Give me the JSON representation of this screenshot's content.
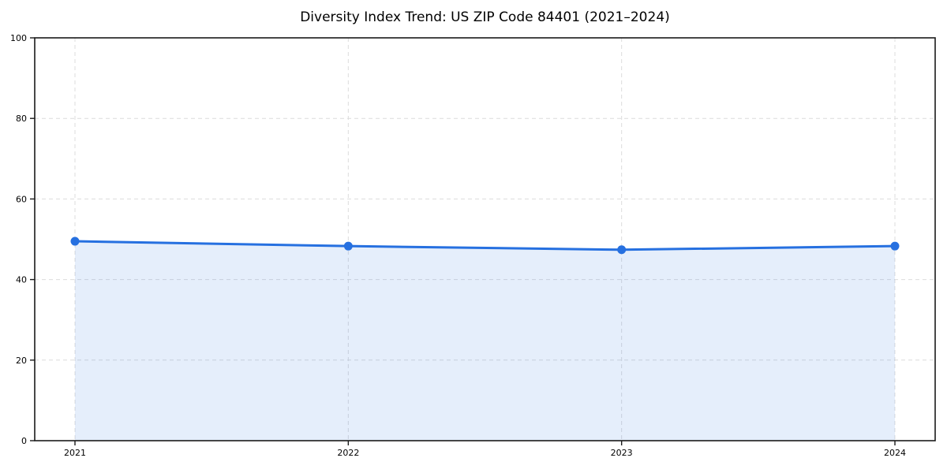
{
  "figure": {
    "title": "Diversity Index Trend: US ZIP Code 84401 (2021–2024)"
  },
  "chart_data": {
    "type": "area",
    "title": "Diversity Index Trend: US ZIP Code 84401 (2021–2024)",
    "xlabel": "",
    "ylabel": "",
    "categories": [
      "2021",
      "2022",
      "2023",
      "2024"
    ],
    "series": [
      {
        "name": "Diversity Index",
        "values": [
          49.5,
          48.3,
          47.4,
          48.3
        ]
      }
    ],
    "ylim": [
      0,
      100
    ],
    "yticks": [
      0,
      20,
      40,
      60,
      80,
      100
    ],
    "grid": "dashed-both-axes",
    "legend_position": "none",
    "marker": "circle",
    "colors": {
      "line": "#2670e0",
      "marker": "#2670e0",
      "fill": "#2670e0",
      "fill_opacity": 0.12,
      "grid": "#dcdcdc",
      "spine": "#1a1a1a",
      "tick_text": "#000000",
      "background": "#ffffff"
    }
  }
}
